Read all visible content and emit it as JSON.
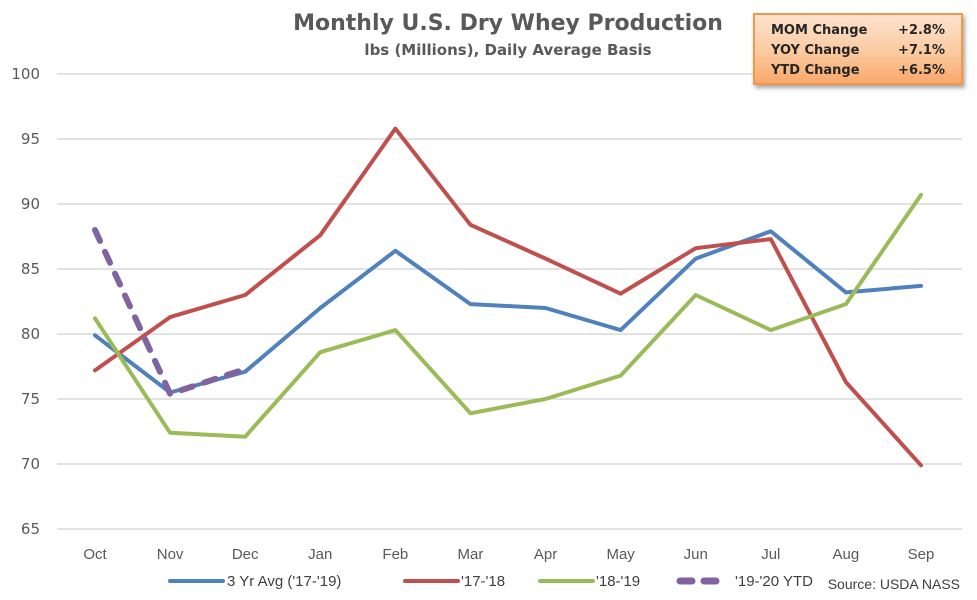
{
  "stats_box": {
    "rows": [
      {
        "label": "MOM Change",
        "value": "+2.8%"
      },
      {
        "label": "YOY Change",
        "value": "+7.1%"
      },
      {
        "label": "YTD Change",
        "value": "+6.5%"
      }
    ]
  },
  "source": "Source: USDA NASS",
  "colors": {
    "avg": "#4f81bd",
    "y1718": "#c0504d",
    "y1819": "#9bbb59",
    "y1920": "#8064a2",
    "grid": "#d9d9d9",
    "stats_border": "#f79646"
  },
  "chart_data": {
    "type": "line",
    "title": "Monthly U.S. Dry Whey Production",
    "subtitle": "lbs (Millions), Daily Average Basis",
    "xlabel": "",
    "ylabel": "",
    "categories": [
      "Oct",
      "Nov",
      "Dec",
      "Jan",
      "Feb",
      "Mar",
      "Apr",
      "May",
      "Jun",
      "Jul",
      "Aug",
      "Sep"
    ],
    "ylim": [
      65,
      100
    ],
    "yticks": [
      65,
      70,
      75,
      80,
      85,
      90,
      95,
      100
    ],
    "grid": true,
    "legend_position": "bottom",
    "series": [
      {
        "name": "3 Yr Avg ('17-'19)",
        "color": "#4f81bd",
        "dashed": false,
        "values": [
          79.9,
          75.5,
          77.1,
          82.0,
          86.4,
          82.3,
          82.0,
          80.3,
          85.8,
          87.9,
          83.2,
          83.7
        ]
      },
      {
        "name": "'17-'18",
        "color": "#c0504d",
        "dashed": false,
        "values": [
          77.2,
          81.3,
          83.0,
          87.6,
          95.8,
          88.4,
          85.8,
          83.1,
          86.6,
          87.3,
          76.3,
          69.9
        ]
      },
      {
        "name": "'18-'19",
        "color": "#9bbb59",
        "dashed": false,
        "values": [
          81.2,
          72.4,
          72.1,
          78.6,
          80.3,
          73.9,
          75.0,
          76.8,
          83.0,
          80.3,
          82.3,
          90.7
        ]
      },
      {
        "name": "'19-'20 YTD",
        "color": "#8064a2",
        "dashed": true,
        "values": [
          88.0,
          75.4,
          77.3
        ]
      }
    ]
  }
}
